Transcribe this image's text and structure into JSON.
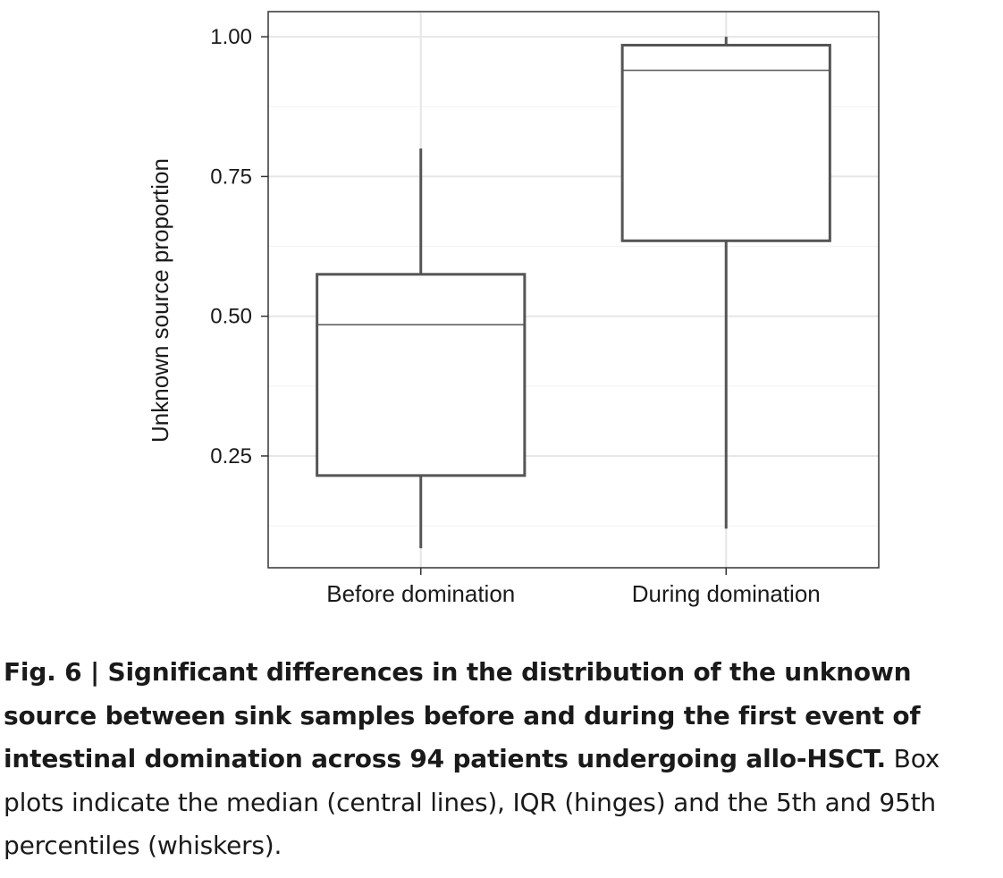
{
  "chart_data": {
    "type": "box",
    "ylabel": "Unknown source proportion",
    "xlabel": "",
    "ylim": [
      0.05,
      1.045
    ],
    "y_ticks": [
      "0.25",
      "0.50",
      "0.75",
      "1.00"
    ],
    "y_tick_values": [
      0.25,
      0.5,
      0.75,
      1.0
    ],
    "grid": true,
    "categories": [
      "Before domination",
      "During domination"
    ],
    "boxes": [
      {
        "category": "Before domination",
        "whisker_low": 0.085,
        "q1": 0.215,
        "median": 0.485,
        "q3": 0.575,
        "whisker_high": 0.8
      },
      {
        "category": "During domination",
        "whisker_low": 0.12,
        "q1": 0.635,
        "median": 0.94,
        "q3": 0.985,
        "whisker_high": 1.0
      }
    ]
  },
  "caption": {
    "bold": "Fig. 6 | Significant differences in the distribution of the unknown source between sink samples before and during the first event of intestinal domination across 94 patients undergoing allo-HSCT.",
    "text": " Box plots indicate the median (central lines), IQR (hinges) and the 5th and 95th percentiles (whiskers)."
  }
}
